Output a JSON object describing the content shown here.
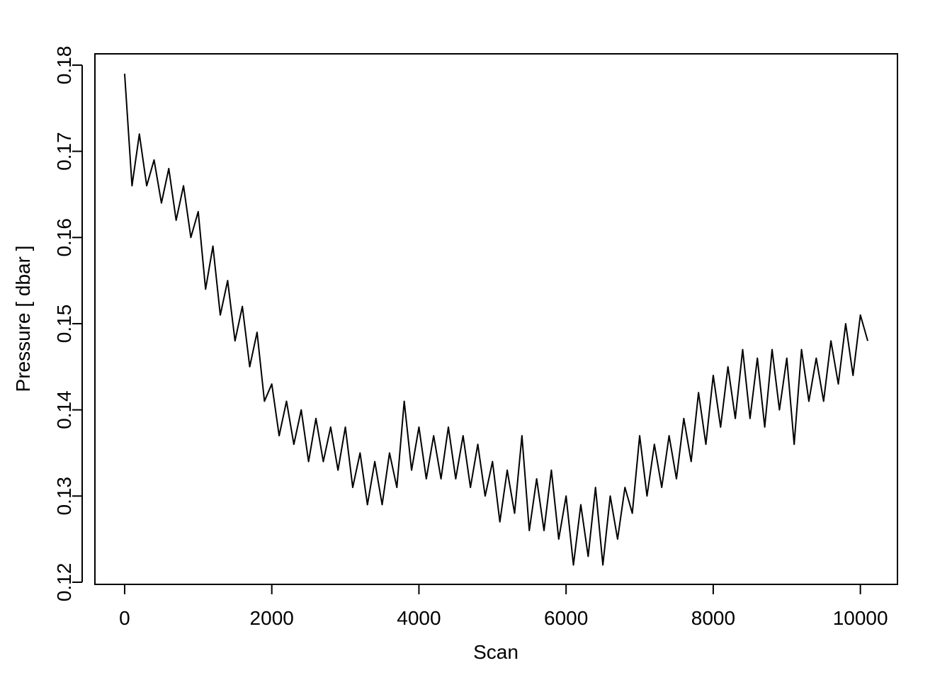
{
  "chart_data": {
    "type": "line",
    "xlabel": "Scan",
    "ylabel": "Pressure [ dbar ]",
    "xlim": [
      -404,
      10504
    ],
    "ylim": [
      0.11975,
      0.18131
    ],
    "xticks": [
      0,
      2000,
      4000,
      6000,
      8000,
      10000
    ],
    "yticks": [
      0.12,
      0.13,
      0.14,
      0.15,
      0.16,
      0.17,
      0.18
    ],
    "grid": false,
    "series": [
      {
        "color": "#000000",
        "x": [
          0,
          100,
          200,
          300,
          400,
          500,
          600,
          700,
          800,
          900,
          1000,
          1100,
          1200,
          1300,
          1400,
          1500,
          1600,
          1700,
          1800,
          1900,
          2000,
          2100,
          2200,
          2300,
          2400,
          2500,
          2600,
          2700,
          2800,
          2900,
          3000,
          3100,
          3200,
          3300,
          3400,
          3500,
          3600,
          3700,
          3800,
          3900,
          4000,
          4100,
          4200,
          4300,
          4400,
          4500,
          4600,
          4700,
          4800,
          4900,
          5000,
          5100,
          5200,
          5300,
          5400,
          5500,
          5600,
          5700,
          5800,
          5900,
          6000,
          6100,
          6200,
          6300,
          6400,
          6500,
          6600,
          6700,
          6800,
          6900,
          7000,
          7100,
          7200,
          7300,
          7400,
          7500,
          7600,
          7700,
          7800,
          7900,
          8000,
          8100,
          8200,
          8300,
          8400,
          8500,
          8600,
          8700,
          8800,
          8900,
          9000,
          9100,
          9200,
          9300,
          9400,
          9500,
          9600,
          9700,
          9800,
          9900,
          10000,
          10100
        ],
        "values": [
          0.179,
          0.166,
          0.172,
          0.166,
          0.169,
          0.164,
          0.168,
          0.162,
          0.166,
          0.16,
          0.163,
          0.154,
          0.159,
          0.151,
          0.155,
          0.148,
          0.152,
          0.145,
          0.149,
          0.141,
          0.143,
          0.137,
          0.141,
          0.136,
          0.14,
          0.134,
          0.139,
          0.134,
          0.138,
          0.133,
          0.138,
          0.131,
          0.135,
          0.129,
          0.134,
          0.129,
          0.135,
          0.131,
          0.141,
          0.133,
          0.138,
          0.132,
          0.137,
          0.132,
          0.138,
          0.132,
          0.137,
          0.131,
          0.136,
          0.13,
          0.134,
          0.127,
          0.133,
          0.128,
          0.137,
          0.126,
          0.132,
          0.126,
          0.133,
          0.125,
          0.13,
          0.122,
          0.129,
          0.123,
          0.131,
          0.122,
          0.13,
          0.125,
          0.131,
          0.128,
          0.137,
          0.13,
          0.136,
          0.131,
          0.137,
          0.132,
          0.139,
          0.134,
          0.142,
          0.136,
          0.144,
          0.138,
          0.145,
          0.139,
          0.147,
          0.139,
          0.146,
          0.138,
          0.147,
          0.14,
          0.146,
          0.136,
          0.147,
          0.141,
          0.146,
          0.141,
          0.148,
          0.143,
          0.15,
          0.144,
          0.151,
          0.148
        ]
      }
    ]
  }
}
